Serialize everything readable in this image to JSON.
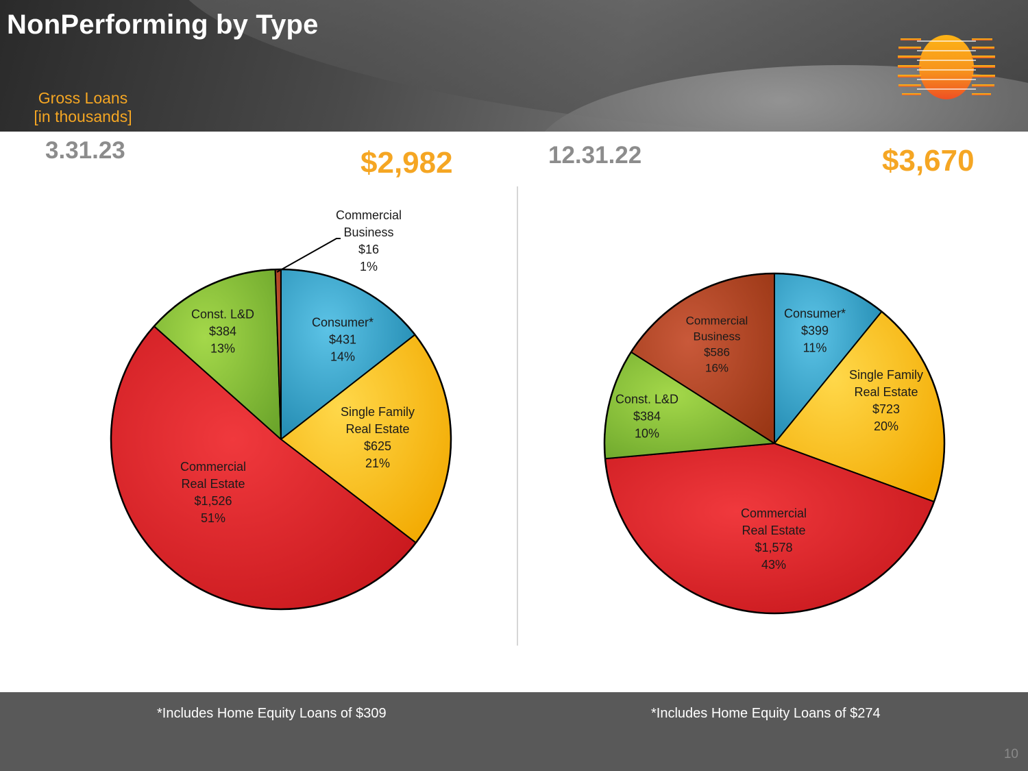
{
  "page": {
    "title": "NonPerforming by Type",
    "subtitle_line1": "Gross  Loans",
    "subtitle_line2": "[in thousands]",
    "page_number": "10"
  },
  "colors": {
    "accent": "#f5a623",
    "consumer": "#2f9fc7",
    "single_family": "#fbbf0c",
    "commercial_re": "#e02626",
    "const_ld": "#8cc43a",
    "commercial_business": "#b0451e"
  },
  "chart_data": [
    {
      "type": "pie",
      "title": "3.31.23",
      "total": "$2,982",
      "slices": [
        {
          "name": "Consumer*",
          "value": 431,
          "value_label": "$431",
          "percent": "14%",
          "color_key": "consumer"
        },
        {
          "name": "Single Family Real Estate",
          "value": 625,
          "value_label": "$625",
          "percent": "21%",
          "color_key": "single_family"
        },
        {
          "name": "Commercial Real Estate",
          "value": 1526,
          "value_label": "$1,526",
          "percent": "51%",
          "color_key": "commercial_re"
        },
        {
          "name": "Const. L&D",
          "value": 384,
          "value_label": "$384",
          "percent": "13%",
          "color_key": "const_ld"
        },
        {
          "name": "Commercial Business",
          "value": 16,
          "value_label": "$16",
          "percent": "1%",
          "color_key": "commercial_business"
        }
      ],
      "footnote": "*Includes Home Equity Loans of $309"
    },
    {
      "type": "pie",
      "title": "12.31.22",
      "total": "$3,670",
      "slices": [
        {
          "name": "Consumer*",
          "value": 399,
          "value_label": "$399",
          "percent": "11%",
          "color_key": "consumer"
        },
        {
          "name": "Single Family Real Estate",
          "value": 723,
          "value_label": "$723",
          "percent": "20%",
          "color_key": "single_family"
        },
        {
          "name": "Commercial Real Estate",
          "value": 1578,
          "value_label": "$1,578",
          "percent": "43%",
          "color_key": "commercial_re"
        },
        {
          "name": "Const. L&D",
          "value": 384,
          "value_label": "$384",
          "percent": "10%",
          "color_key": "const_ld"
        },
        {
          "name": "Commercial Business",
          "value": 586,
          "value_label": "$586",
          "percent": "16%",
          "color_key": "commercial_business"
        }
      ],
      "footnote": "*Includes Home Equity Loans of $274"
    }
  ]
}
